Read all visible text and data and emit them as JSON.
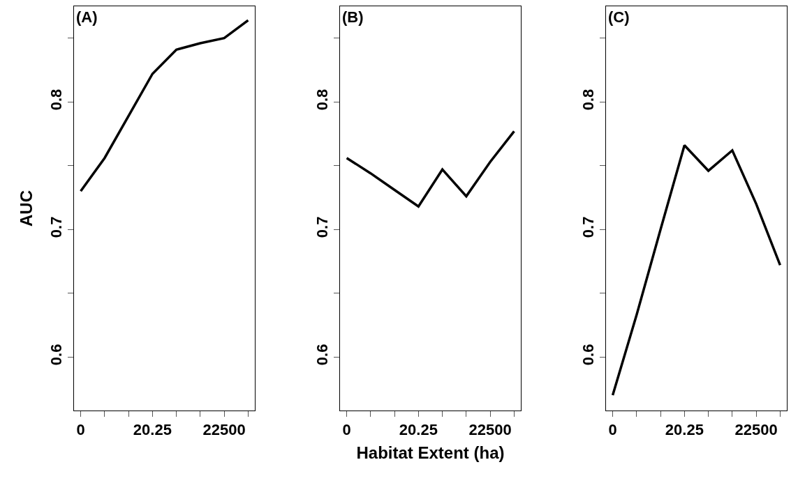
{
  "chart_data": [
    {
      "type": "line",
      "title": "(A)",
      "ylabel": "AUC",
      "line_style": "solid",
      "grid": false,
      "categories": [
        "0",
        null,
        null,
        "20.25",
        null,
        null,
        "22500",
        null
      ],
      "series": [
        {
          "color": "#000000",
          "values": [
            0.73,
            0.756,
            0.789,
            0.822,
            0.841,
            0.846,
            0.85,
            0.864
          ]
        }
      ],
      "ylim": [
        0.558,
        0.875
      ],
      "yticks": [
        0.6,
        {
          "value": 0.65,
          "label": null
        },
        0.7,
        {
          "value": 0.75,
          "label": null
        },
        0.8,
        {
          "value": 0.85,
          "label": null
        }
      ]
    },
    {
      "type": "line",
      "title": "(B)",
      "xlabel": "Habitat Extent (ha)",
      "line_style": "solid",
      "grid": false,
      "categories": [
        "0",
        null,
        null,
        "20.25",
        null,
        null,
        "22500",
        null
      ],
      "series": [
        {
          "color": "#000000",
          "values": [
            0.756,
            0.744,
            0.731,
            0.718,
            0.747,
            0.726,
            0.753,
            0.777
          ]
        }
      ],
      "ylim": [
        0.558,
        0.875
      ],
      "yticks": [
        0.6,
        {
          "value": 0.65,
          "label": null
        },
        0.7,
        {
          "value": 0.75,
          "label": null
        },
        0.8,
        {
          "value": 0.85,
          "label": null
        }
      ]
    },
    {
      "type": "line",
      "title": "(C)",
      "line_style": "solid",
      "grid": false,
      "categories": [
        "0",
        null,
        null,
        "20.25",
        null,
        null,
        "22500",
        null
      ],
      "series": [
        {
          "color": "#000000",
          "values": [
            0.57,
            0.633,
            0.7,
            0.766,
            0.746,
            0.762,
            0.72,
            0.672
          ]
        }
      ],
      "ylim": [
        0.558,
        0.875
      ],
      "yticks": [
        0.6,
        {
          "value": 0.65,
          "label": null
        },
        0.7,
        {
          "value": 0.75,
          "label": null
        },
        0.8,
        {
          "value": 0.85,
          "label": null
        }
      ]
    }
  ]
}
